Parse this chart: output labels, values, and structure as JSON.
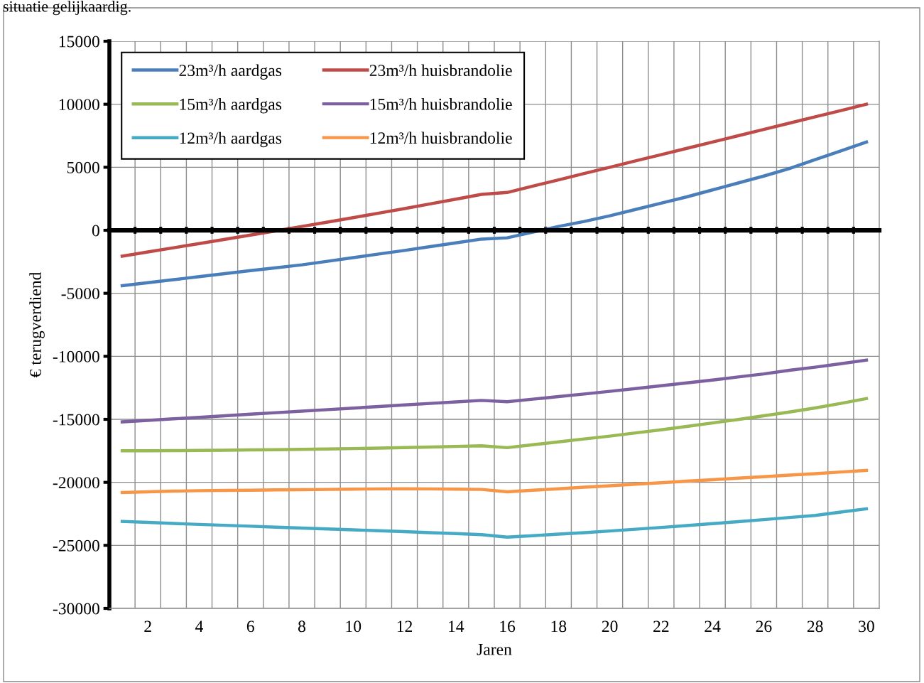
{
  "chart_data": {
    "type": "line",
    "xlabel": "Jaren",
    "ylabel": "€ terugverdiend",
    "annotations": [
      "situatie gelijkaardig."
    ],
    "categories": [
      null,
      "2",
      null,
      "4",
      null,
      "6",
      null,
      "8",
      null,
      "10",
      null,
      "12",
      null,
      "14",
      null,
      "16",
      null,
      "18",
      null,
      "20",
      null,
      "22",
      null,
      "24",
      null,
      "26",
      null,
      "28",
      null,
      "30"
    ],
    "ylim": [
      -30000,
      15000
    ],
    "yticks": [
      -30000,
      -25000,
      -20000,
      -15000,
      -10000,
      -5000,
      0,
      5000,
      10000,
      15000
    ],
    "grid": true,
    "legend": "top left",
    "marker": "none",
    "line_style": "solid",
    "series": [
      {
        "name": "23m³/h aardgas",
        "color": "#4a7ebb",
        "values": [
          -4400,
          -4160,
          -3920,
          -3680,
          -3440,
          -3200,
          -2970,
          -2740,
          -2460,
          -2170,
          -1880,
          -1600,
          -1300,
          -1000,
          -700,
          -600,
          -150,
          300,
          700,
          1150,
          1650,
          2150,
          2650,
          3200,
          3750,
          4300,
          4900,
          5600,
          6300,
          7000
        ]
      },
      {
        "name": "23m³/h huisbrandolie",
        "color": "#be4b48",
        "values": [
          -2050,
          -1720,
          -1390,
          -1060,
          -720,
          -380,
          -40,
          300,
          650,
          1000,
          1360,
          1720,
          2090,
          2470,
          2850,
          3000,
          3500,
          4000,
          4500,
          5000,
          5500,
          6000,
          6500,
          7000,
          7500,
          8000,
          8500,
          9000,
          9500,
          10000
        ]
      },
      {
        "name": "15m³/h aardgas",
        "color": "#98b954",
        "values": [
          -17500,
          -17490,
          -17480,
          -17470,
          -17450,
          -17430,
          -17410,
          -17380,
          -17350,
          -17320,
          -17280,
          -17240,
          -17200,
          -17150,
          -17100,
          -17250,
          -17020,
          -16790,
          -16560,
          -16330,
          -16080,
          -15830,
          -15560,
          -15290,
          -15010,
          -14720,
          -14420,
          -14100,
          -13740,
          -13350
        ]
      },
      {
        "name": "15m³/h huisbrandolie",
        "color": "#7d60a0",
        "values": [
          -15200,
          -15080,
          -14960,
          -14840,
          -14720,
          -14590,
          -14470,
          -14350,
          -14230,
          -14110,
          -13990,
          -13860,
          -13740,
          -13620,
          -13500,
          -13600,
          -13400,
          -13200,
          -12990,
          -12780,
          -12560,
          -12340,
          -12110,
          -11880,
          -11640,
          -11400,
          -11110,
          -10860,
          -10590,
          -10300
        ]
      },
      {
        "name": "12m³/h aardgas",
        "color": "#46aac5",
        "values": [
          -23100,
          -23180,
          -23260,
          -23340,
          -23410,
          -23480,
          -23560,
          -23630,
          -23700,
          -23770,
          -23840,
          -23910,
          -23990,
          -24070,
          -24150,
          -24350,
          -24230,
          -24110,
          -23990,
          -23860,
          -23720,
          -23580,
          -23430,
          -23280,
          -23120,
          -22960,
          -22790,
          -22630,
          -22360,
          -22100
        ]
      },
      {
        "name": "12m³/h huisbrandolie",
        "color": "#f79646",
        "values": [
          -20800,
          -20750,
          -20700,
          -20660,
          -20640,
          -20620,
          -20600,
          -20580,
          -20560,
          -20540,
          -20520,
          -20510,
          -20520,
          -20540,
          -20560,
          -20750,
          -20630,
          -20510,
          -20390,
          -20270,
          -20150,
          -20030,
          -19910,
          -19790,
          -19670,
          -19550,
          -19430,
          -19310,
          -19180,
          -19050
        ]
      }
    ]
  }
}
